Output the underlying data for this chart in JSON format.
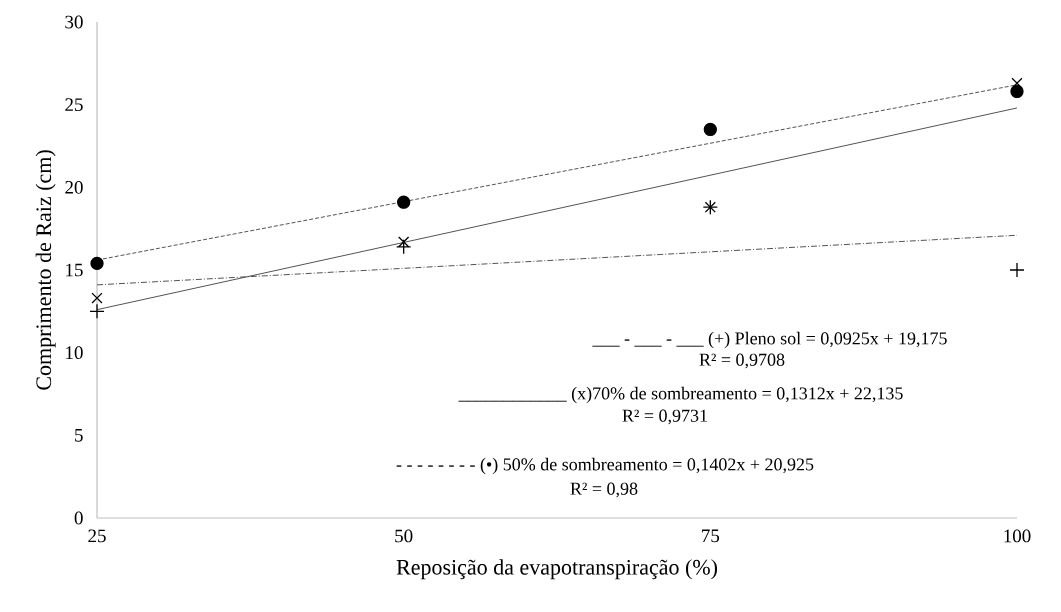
{
  "chart_data": {
    "type": "scatter",
    "xlabel": "Reposição da evapotranspiração (%)",
    "ylabel": "Comprimento de Raiz (cm)",
    "x": [
      25,
      50,
      75,
      100
    ],
    "series": [
      {
        "color": "#000000",
        "marker": "plus",
        "values": [
          12.5,
          16.4,
          18.8,
          15.0
        ]
      },
      {
        "color": "#000000",
        "marker": "cross",
        "values": [
          13.3,
          16.7,
          18.8,
          26.3
        ]
      },
      {
        "color": "#000000",
        "marker": "circle",
        "values": [
          15.4,
          19.1,
          23.5,
          25.8
        ]
      },
      {
        "type": "line",
        "color": "#404040",
        "line_style": "dashdot",
        "values": [
          14.1,
          null,
          null,
          17.1
        ]
      },
      {
        "type": "line",
        "color": "#404040",
        "line_style": "solid",
        "values": [
          12.6,
          null,
          null,
          24.8
        ]
      },
      {
        "type": "line",
        "color": "#404040",
        "line_style": "dashed",
        "values": [
          15.6,
          null,
          null,
          26.2
        ]
      }
    ],
    "xlim": [
      25,
      100
    ],
    "xticks": [
      25,
      50,
      75,
      100
    ],
    "ylim": [
      0,
      30
    ],
    "yticks": [
      0,
      5,
      10,
      15,
      20,
      25,
      30
    ],
    "grid": false,
    "annotations": [
      "___  -  ___  -  ___ (+) Pleno sol = 0,0925x + 19,175",
      "R² = 0,9708",
      "____________  (x)70% de sombreamento  = 0,1312x + 22,135",
      "R² = 0,9731",
      "- - - - - - - - (•) 50% de sombreamento  = 0,1402x + 20,925",
      "R² = 0,98"
    ]
  }
}
